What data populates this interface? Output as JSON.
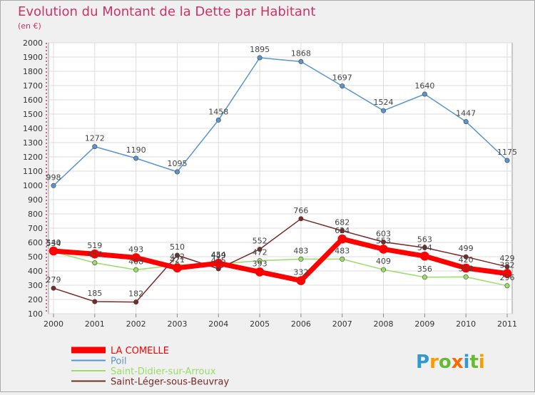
{
  "chart_data": {
    "type": "line",
    "title": "Evolution du Montant de la Dette par Habitant",
    "subtitle": "(en €)",
    "categories": [
      "2000",
      "2001",
      "2002",
      "2003",
      "2004",
      "2005",
      "2006",
      "2007",
      "2008",
      "2009",
      "2010",
      "2011"
    ],
    "ylim": [
      100,
      2000
    ],
    "yticks": [
      100,
      200,
      300,
      400,
      500,
      600,
      700,
      800,
      900,
      1000,
      1100,
      1200,
      1300,
      1400,
      1500,
      1600,
      1700,
      1800,
      1900,
      2000
    ],
    "grid": true,
    "legend_position": "bottom-left",
    "series": [
      {
        "name": "LA COMELLE",
        "color": "#ff0000",
        "values": [
          540,
          519,
          493,
          421,
          454,
          393,
          332,
          624,
          553,
          504,
          420,
          382
        ]
      },
      {
        "name": "Poil",
        "color": "#5a95cc",
        "values": [
          998,
          1272,
          1190,
          1095,
          1458,
          1895,
          1868,
          1697,
          1524,
          1640,
          1447,
          1175
        ]
      },
      {
        "name": "Saint-Didier-sur-Arroux",
        "color": "#99dd66",
        "values": [
          534,
          457,
          408,
          442,
          449,
          472,
          483,
          483,
          409,
          356,
          358,
          296
        ]
      },
      {
        "name": "Saint-Léger-sous-Beuvray",
        "color": "#7a2828",
        "values": [
          279,
          185,
          182,
          510,
          415,
          552,
          766,
          682,
          603,
          563,
          499,
          429
        ]
      }
    ]
  },
  "branding": {
    "logo_text": "Proxiti"
  }
}
